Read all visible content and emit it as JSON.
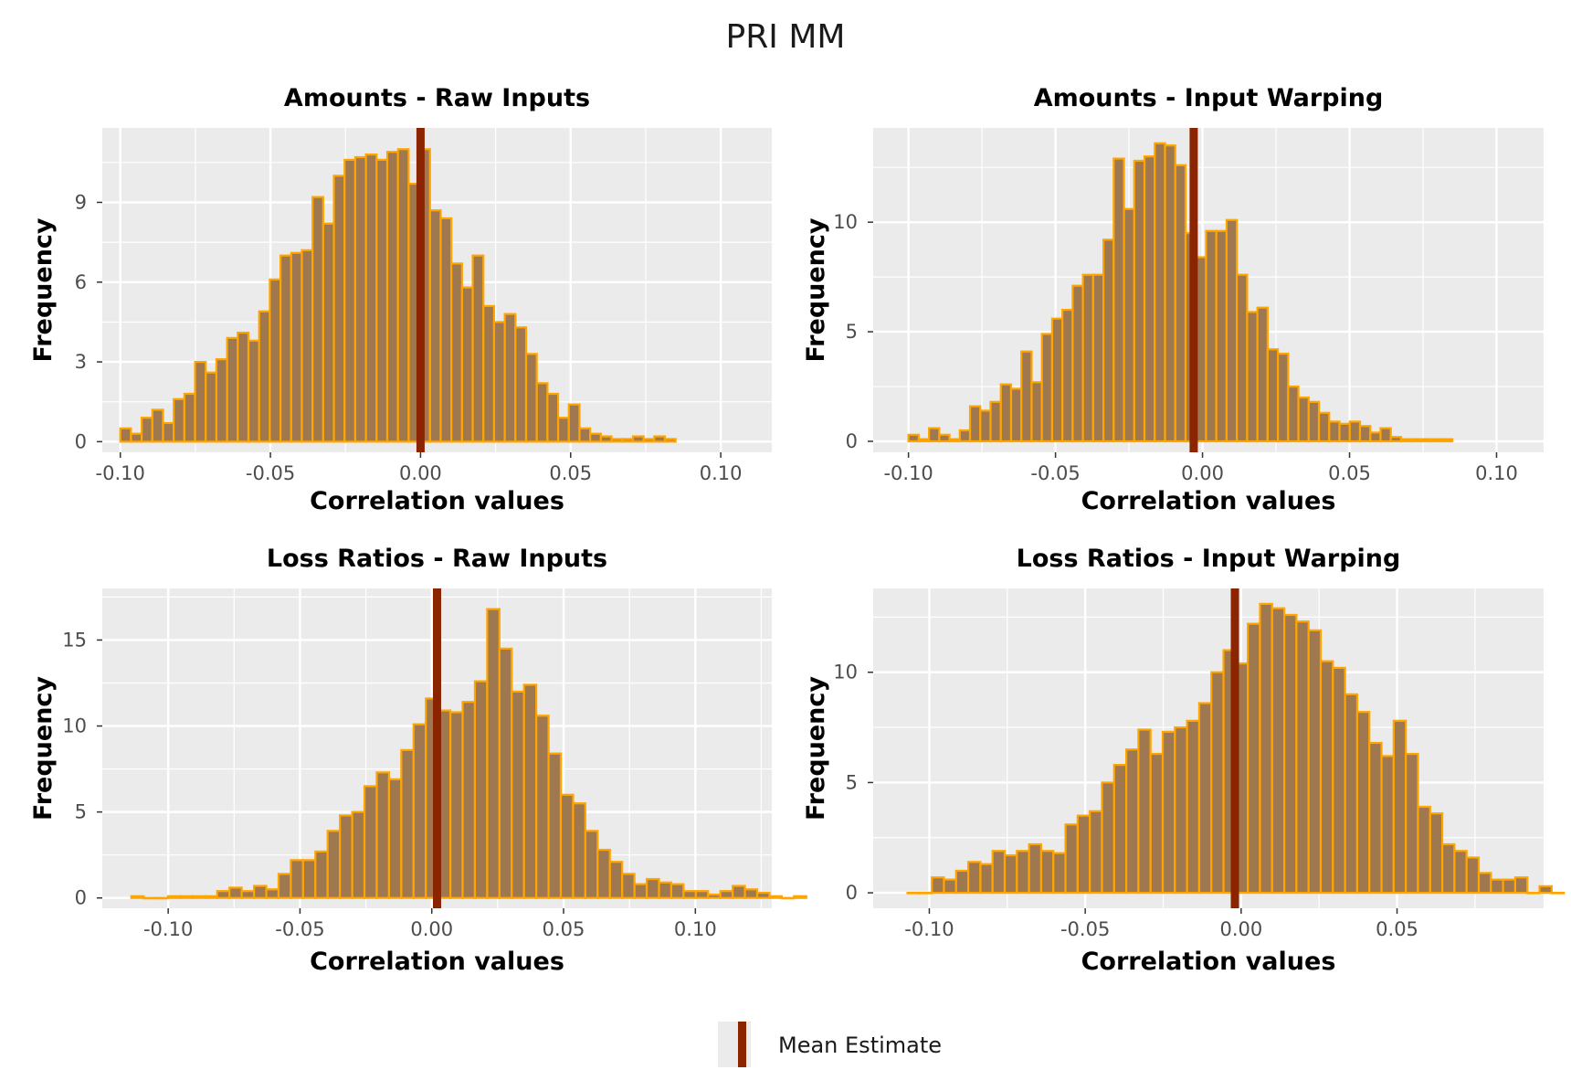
{
  "figure": {
    "title": "PRI MM",
    "legend": {
      "label": "Mean Estimate",
      "color": "#8B2500",
      "position": "bottom"
    }
  },
  "colors": {
    "panel_bg": "#EBEBEB",
    "grid": "#FFFFFF",
    "bar_fill": "#A0784F",
    "bar_outline": "#FFA500",
    "mean_line": "#8B2500"
  },
  "chart_data": [
    {
      "type": "bar",
      "title": "Amounts - Raw Inputs",
      "xlabel": "Correlation values",
      "ylabel": "Frequency",
      "xlim": [
        -0.106,
        0.117
      ],
      "ylim": [
        -0.4,
        11.8
      ],
      "xticks": [
        -0.1,
        -0.05,
        0.0,
        0.05,
        0.1
      ],
      "xtick_labels": [
        "-0.10",
        "-0.05",
        "0.00",
        "0.05",
        "0.10"
      ],
      "yticks": [
        0,
        3,
        6,
        9
      ],
      "ytick_labels": [
        "0",
        "3",
        "6",
        "9"
      ],
      "bin_start": -0.1,
      "bin_width": 0.003557,
      "counts": [
        0.5,
        0.3,
        0.9,
        1.2,
        0.7,
        1.6,
        1.8,
        3.0,
        2.6,
        3.1,
        3.9,
        4.1,
        3.8,
        4.9,
        6.1,
        7.0,
        7.1,
        7.2,
        9.2,
        8.2,
        10.0,
        10.6,
        10.7,
        10.8,
        10.6,
        10.9,
        11.0,
        9.7,
        11.0,
        8.7,
        8.4,
        6.7,
        5.8,
        7.0,
        5.1,
        4.5,
        4.8,
        4.3,
        3.3,
        2.2,
        1.8,
        0.9,
        1.4,
        0.5,
        0.3,
        0.2,
        0.1,
        0.1,
        0.2,
        0.1,
        0.2,
        0.1
      ],
      "mean": 0.0
    },
    {
      "type": "bar",
      "title": "Amounts - Input Warping",
      "xlabel": "Correlation values",
      "ylabel": "Frequency",
      "xlim": [
        -0.112,
        0.116
      ],
      "ylim": [
        -0.5,
        14.3
      ],
      "xticks": [
        -0.1,
        -0.05,
        0.0,
        0.05,
        0.1
      ],
      "xtick_labels": [
        "-0.10",
        "-0.05",
        "0.00",
        "0.05",
        "0.10"
      ],
      "yticks": [
        0,
        5,
        10
      ],
      "ytick_labels": [
        "0",
        "5",
        "10"
      ],
      "bin_start": -0.1,
      "bin_width": 0.00349,
      "counts": [
        0.3,
        0.1,
        0.6,
        0.3,
        0.1,
        0.5,
        1.6,
        1.4,
        1.8,
        2.6,
        2.4,
        4.1,
        2.7,
        4.9,
        5.6,
        6.0,
        7.1,
        7.6,
        7.6,
        9.2,
        12.9,
        10.6,
        12.8,
        13.0,
        13.6,
        13.5,
        12.6,
        9.5,
        8.4,
        9.6,
        9.6,
        10.1,
        7.6,
        5.9,
        6.1,
        4.2,
        4.0,
        2.5,
        2.0,
        1.8,
        1.3,
        0.9,
        0.8,
        0.9,
        0.7,
        0.4,
        0.6,
        0.2,
        0.1,
        0.1,
        0.1,
        0.1,
        0.1
      ],
      "mean": -0.003
    },
    {
      "type": "bar",
      "title": "Loss Ratios - Raw Inputs",
      "xlabel": "Correlation values",
      "ylabel": "Frequency",
      "xlim": [
        -0.125,
        0.129
      ],
      "ylim": [
        -0.6,
        18.0
      ],
      "xticks": [
        -0.1,
        -0.05,
        0.0,
        0.05,
        0.1
      ],
      "xtick_labels": [
        "-0.10",
        "-0.05",
        "0.00",
        "0.05",
        "0.10"
      ],
      "yticks": [
        0,
        5,
        10,
        15
      ],
      "ytick_labels": [
        "0",
        "5",
        "10",
        "15"
      ],
      "bin_start": -0.114,
      "bin_width": 0.004656,
      "counts": [
        0.1,
        0.0,
        0.0,
        0.1,
        0.1,
        0.1,
        0.1,
        0.4,
        0.6,
        0.4,
        0.7,
        0.5,
        1.4,
        2.2,
        2.2,
        2.7,
        3.9,
        4.8,
        5.0,
        6.5,
        7.3,
        6.9,
        8.6,
        10.1,
        11.6,
        10.9,
        10.8,
        11.4,
        12.6,
        16.8,
        14.5,
        12.0,
        12.4,
        10.6,
        8.4,
        6.0,
        5.5,
        3.9,
        2.8,
        2.1,
        1.4,
        0.8,
        1.1,
        0.9,
        0.8,
        0.4,
        0.4,
        0.2,
        0.4,
        0.7,
        0.5,
        0.3,
        0.1,
        0.0,
        0.1
      ],
      "mean": 0.002
    },
    {
      "type": "bar",
      "title": "Loss Ratios - Input Warping",
      "xlabel": "Correlation values",
      "ylabel": "Frequency",
      "xlim": [
        -0.118,
        0.097
      ],
      "ylim": [
        -0.7,
        13.8
      ],
      "xticks": [
        -0.1,
        -0.05,
        0.0,
        0.05
      ],
      "xtick_labels": [
        "-0.10",
        "-0.05",
        "0.00",
        "0.05"
      ],
      "yticks": [
        0,
        5,
        10
      ],
      "ytick_labels": [
        "0",
        "5",
        "10"
      ],
      "bin_start": -0.107,
      "bin_width": 0.003898,
      "counts": [
        0.0,
        0.0,
        0.7,
        0.6,
        1.0,
        1.4,
        1.3,
        1.9,
        1.7,
        1.9,
        2.2,
        1.9,
        1.8,
        3.1,
        3.5,
        3.7,
        5.0,
        5.8,
        6.5,
        7.4,
        6.3,
        7.3,
        7.5,
        7.8,
        8.6,
        10.0,
        11.0,
        10.4,
        12.2,
        13.1,
        12.9,
        12.6,
        12.3,
        11.9,
        10.5,
        10.2,
        9.0,
        8.2,
        6.8,
        6.2,
        7.8,
        6.3,
        3.9,
        3.6,
        2.2,
        1.9,
        1.6,
        0.9,
        0.6,
        0.6,
        0.7,
        0.0,
        0.3,
        0.0
      ],
      "mean": -0.002
    }
  ]
}
